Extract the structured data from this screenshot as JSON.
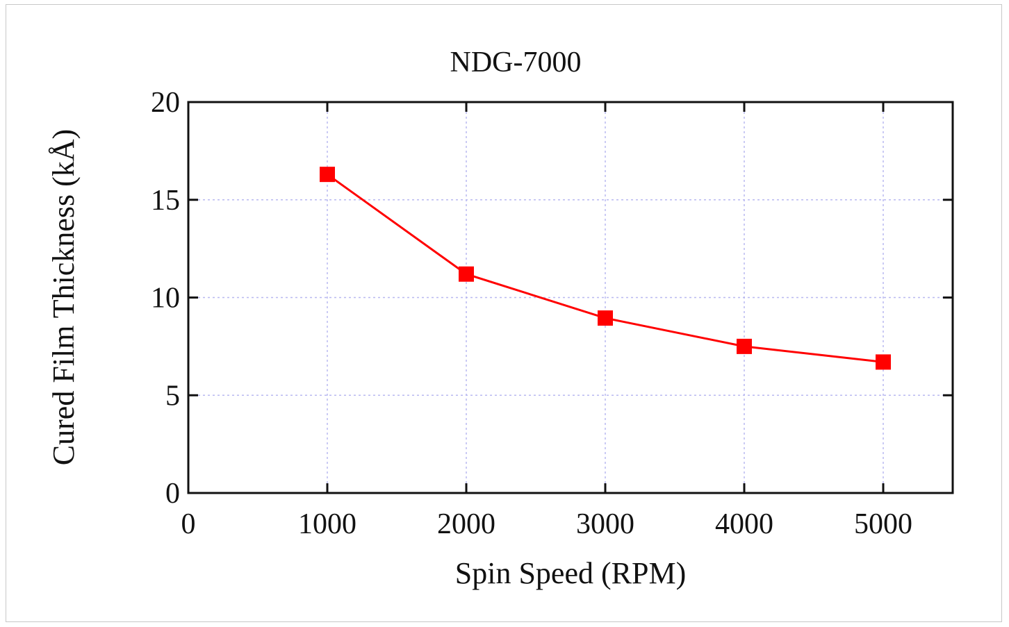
{
  "chart_data": {
    "type": "line",
    "title": "NDG-7000",
    "xlabel": "Spin Speed (RPM)",
    "ylabel": "Cured Film Thickness (kÅ)",
    "xlim": [
      0,
      5500
    ],
    "ylim": [
      0,
      20
    ],
    "x_ticks": [
      0,
      1000,
      2000,
      3000,
      4000,
      5000
    ],
    "y_ticks": [
      0,
      5,
      10,
      15,
      20
    ],
    "x_tick_labels": [
      "0",
      "1000",
      "2000",
      "3000",
      "4000",
      "5000"
    ],
    "y_tick_labels": [
      "0",
      "5",
      "10",
      "15",
      "20"
    ],
    "grid": true,
    "series": [
      {
        "x": [
          1000,
          2000,
          3000,
          4000,
          5000
        ],
        "y": [
          16.3,
          11.2,
          8.95,
          7.5,
          6.7
        ],
        "color": "#ff0000",
        "marker": "square"
      }
    ]
  }
}
